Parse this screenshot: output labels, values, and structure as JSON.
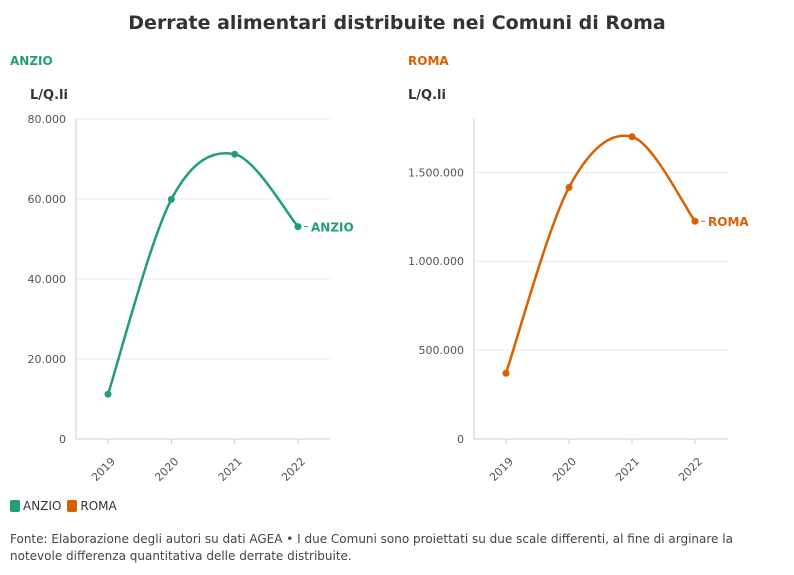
{
  "title": "Derrate alimentari distribuite nei Comuni di Roma",
  "chart_data": [
    {
      "type": "line",
      "panel_title": "ANZIO",
      "ylabel": "L/Q.li",
      "color": "#1f9e77",
      "x": [
        "2019",
        "2020",
        "2021",
        "2022"
      ],
      "series": [
        {
          "name": "ANZIO",
          "values": [
            11200,
            59900,
            71200,
            53100
          ]
        }
      ],
      "ylim": [
        0,
        80000
      ],
      "yticks": [
        0,
        20000,
        40000,
        60000,
        80000
      ],
      "ytick_labels": [
        "0",
        "20.000",
        "40.000",
        "60.000",
        "80.000"
      ]
    },
    {
      "type": "line",
      "panel_title": "ROMA",
      "ylabel": "L/Q.li",
      "color": "#d95f02",
      "x": [
        "2019",
        "2020",
        "2021",
        "2022"
      ],
      "series": [
        {
          "name": "ROMA",
          "values": [
            370000,
            1415000,
            1700000,
            1225000
          ]
        }
      ],
      "ylim": [
        0,
        1800000
      ],
      "yticks": [
        0,
        500000,
        1000000,
        1500000
      ],
      "ytick_labels": [
        "0",
        "500.000",
        "1.000.000",
        "1.500.000"
      ]
    }
  ],
  "legend": [
    {
      "label": "ANZIO",
      "color": "#1f9e77"
    },
    {
      "label": "ROMA",
      "color": "#d95f02"
    }
  ],
  "source": "Fonte: Elaborazione degli autori su dati AGEA • I due Comuni sono proiettati su due scale differenti, al fine di arginare la notevole differenza quantitativa delle derrate distribuite."
}
